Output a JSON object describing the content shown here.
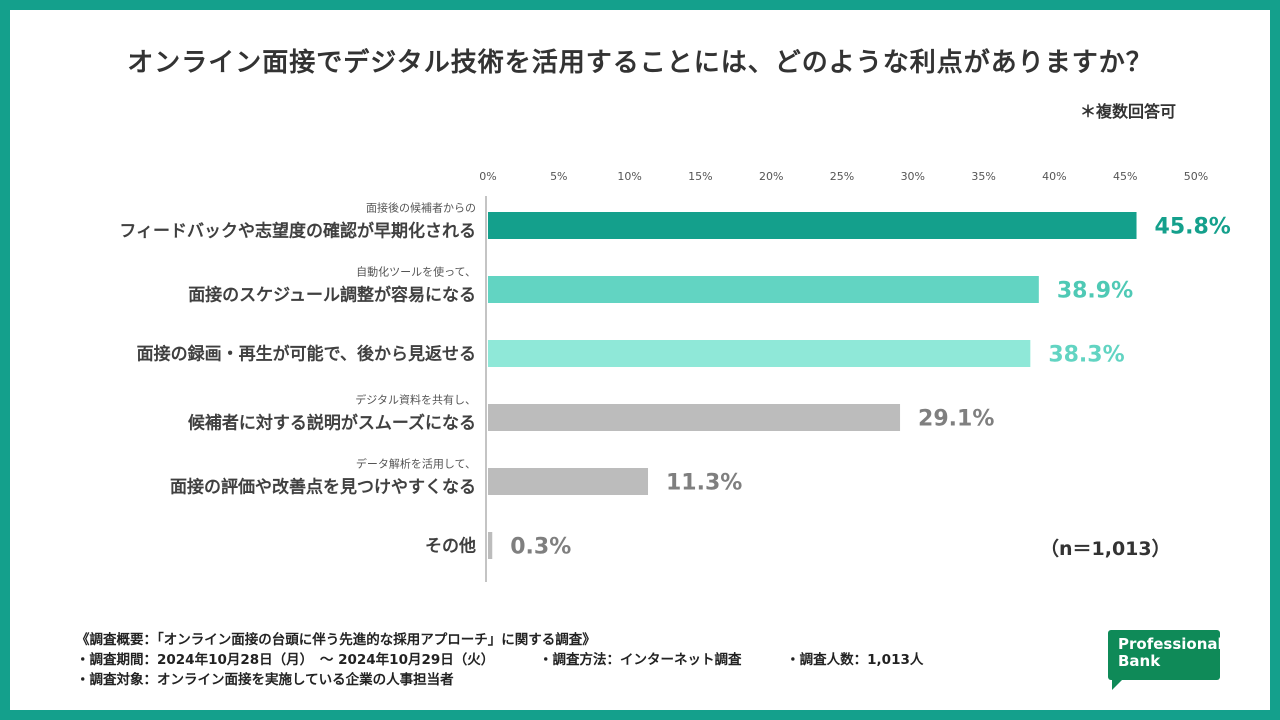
{
  "title": "オンライン面接でデジタル技術を活用することには、どのような利点がありますか？",
  "note": "＊複数回答可",
  "n_label": "（n＝1,013）",
  "colors": {
    "teal_dark": "#14a08c",
    "teal_mid": "#62d4c2",
    "teal_light": "#8fe8d8",
    "gray": "#bcbcbc",
    "gray_text": "#7f7f7f",
    "frame": "#14a08c"
  },
  "chart_data": {
    "type": "bar",
    "orientation": "horizontal",
    "xlim": [
      0,
      50
    ],
    "ticks": [
      "0%",
      "5%",
      "10%",
      "15%",
      "20%",
      "25%",
      "30%",
      "35%",
      "40%",
      "45%",
      "50%"
    ],
    "tick_values": [
      0,
      5,
      10,
      15,
      20,
      25,
      30,
      35,
      40,
      45,
      50
    ],
    "categories": [
      {
        "small": "面接後の候補者からの",
        "main": "フィードバックや志望度の確認が早期化される",
        "value": 45.8,
        "label": "45.8%",
        "color": "#14a08c",
        "label_color": "#14a08c"
      },
      {
        "small": "自動化ツールを使って、",
        "main": "面接のスケジュール調整が容易になる",
        "value": 38.9,
        "label": "38.9%",
        "color": "#62d4c2",
        "label_color": "#4fc9b5"
      },
      {
        "small": "",
        "main": "面接の録画・再生が可能で、後から見返せる",
        "value": 38.3,
        "label": "38.3%",
        "color": "#8fe8d8",
        "label_color": "#62d4c2"
      },
      {
        "small": "デジタル資料を共有し、",
        "main": "候補者に対する説明がスムーズになる",
        "value": 29.1,
        "label": "29.1%",
        "color": "#bcbcbc",
        "label_color": "#7f7f7f"
      },
      {
        "small": "データ解析を活用して、",
        "main": "面接の評価や改善点を見つけやすくなる",
        "value": 11.3,
        "label": "11.3%",
        "color": "#bcbcbc",
        "label_color": "#7f7f7f"
      },
      {
        "small": "",
        "main": "その他",
        "value": 0.3,
        "label": "0.3%",
        "color": "#bcbcbc",
        "label_color": "#7f7f7f"
      }
    ]
  },
  "footer": {
    "line1": "《調査概要：「オンライン面接の台頭に伴う先進的な採用アプローチ」に関する調査》",
    "period": "・調査期間：2024年10月28日（月）　～ 2024年10月29日（火）",
    "method": "・調査方法：インターネット調査",
    "count": "・調査人数：1,013人",
    "target": "・調査対象：オンライン面接を実施している企業の人事担当者"
  },
  "logo": {
    "line1": "Professional",
    "line2": "Bank"
  }
}
